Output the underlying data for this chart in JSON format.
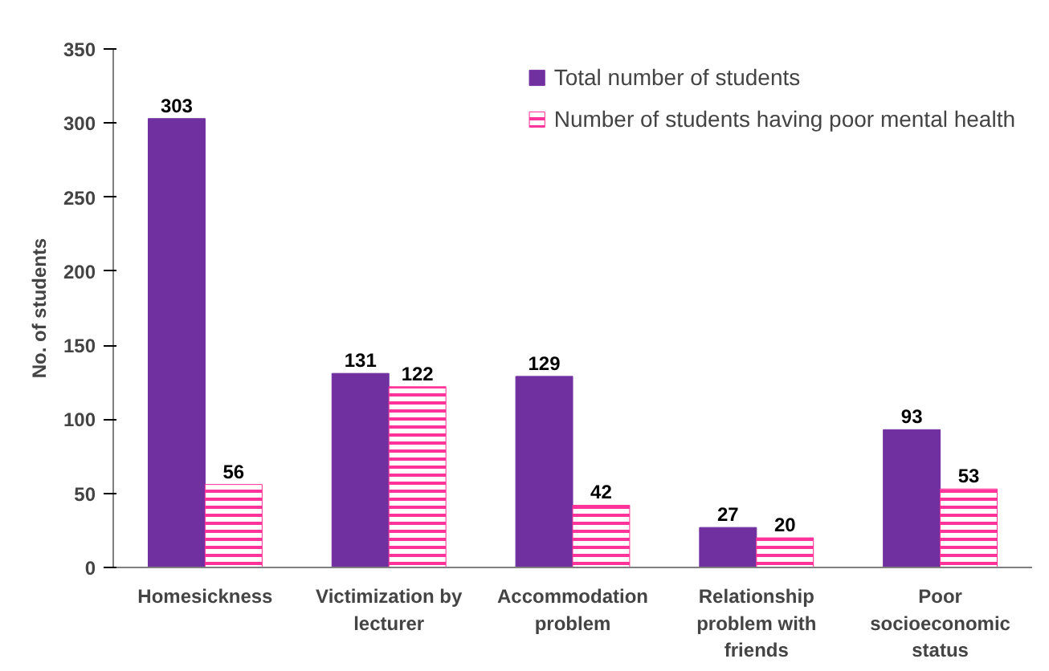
{
  "chart_data": {
    "type": "bar",
    "ylabel": "No. of students",
    "categories": [
      "Homesickness",
      "Victimization by lecturer",
      "Accommodation problem",
      "Relationship problem with friends",
      "Poor socioeconomic status"
    ],
    "series": [
      {
        "name": "Total number of students",
        "color": "#7030a0",
        "values": [
          303,
          131,
          129,
          27,
          93
        ]
      },
      {
        "name": "Number of students having poor mental health",
        "color": "#ff3399",
        "values": [
          56,
          122,
          42,
          20,
          53
        ]
      }
    ],
    "ylim": [
      0,
      350
    ],
    "yticks": [
      0,
      50,
      100,
      150,
      200,
      250,
      300,
      350
    ],
    "grid": false,
    "legend": "top right",
    "data_labels": true
  }
}
